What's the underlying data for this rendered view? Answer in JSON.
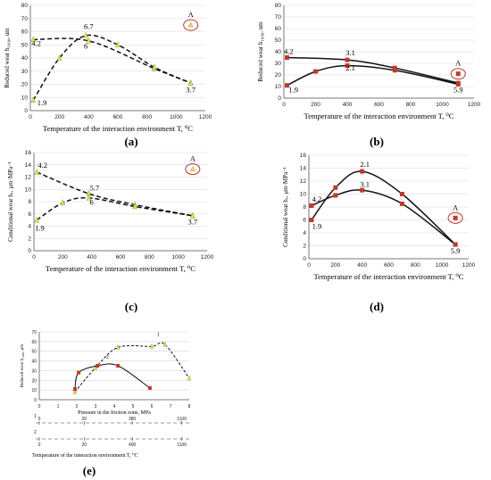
{
  "chart_data": [
    {
      "id": "a",
      "type": "line",
      "panel_label": "(a)",
      "ylabel": "Reduced wear h₁₀₀₀, um",
      "xlabel": "Temperature of the interaction environment T, ⁰C",
      "xlim": [
        0,
        1200
      ],
      "ylim": [
        0,
        80
      ],
      "xticks": [
        0,
        200,
        400,
        600,
        800,
        1000,
        1200
      ],
      "yticks": [
        0,
        10,
        20,
        30,
        40,
        50,
        60,
        70,
        80
      ],
      "series": [
        {
          "style": "dashed",
          "marker": "triangle",
          "color": "#dfe05a",
          "points": [
            [
              20,
              54
            ],
            [
              400,
              53
            ],
            [
              850,
              32
            ],
            [
              1100,
              21
            ]
          ]
        },
        {
          "style": "dashed",
          "marker": "triangle",
          "color": "#dfe05a",
          "points": [
            [
              20,
              8
            ],
            [
              200,
              40
            ],
            [
              380,
              57
            ],
            [
              600,
              50
            ],
            [
              850,
              33
            ],
            [
              1100,
              21
            ]
          ]
        }
      ],
      "outlier": {
        "x": 1100,
        "y": 65,
        "label": "A"
      },
      "annotations": [
        {
          "text": "4.2",
          "x": 40,
          "y": 49
        },
        {
          "text": "6.7",
          "x": 400,
          "y": 62
        },
        {
          "text": "6",
          "x": 380,
          "y": 47
        },
        {
          "text": "1.9",
          "x": 80,
          "y": 4
        },
        {
          "text": "3.7",
          "x": 1100,
          "y": 14
        }
      ]
    },
    {
      "id": "b",
      "type": "line",
      "panel_label": "(b)",
      "ylabel": "Reduced wear h₁₀₀₀, um",
      "xlabel": "Temperature of the interaction environment T, ⁰C",
      "xlim": [
        0,
        1200
      ],
      "ylim": [
        0,
        80
      ],
      "xticks": [
        0,
        200,
        400,
        600,
        800,
        1000,
        1200
      ],
      "yticks": [
        0,
        10,
        20,
        30,
        40,
        50,
        60,
        70,
        80
      ],
      "series": [
        {
          "style": "solid",
          "marker": "square",
          "color": "#c0392b",
          "points": [
            [
              20,
              35
            ],
            [
              400,
              33
            ],
            [
              700,
              26
            ],
            [
              1100,
              13
            ]
          ]
        },
        {
          "style": "solid",
          "marker": "square",
          "color": "#c0392b",
          "points": [
            [
              20,
              11
            ],
            [
              200,
              23
            ],
            [
              400,
              28
            ],
            [
              700,
              24
            ],
            [
              1100,
              12
            ]
          ]
        }
      ],
      "outlier": {
        "x": 1100,
        "y": 21,
        "label": "A"
      },
      "annotations": [
        {
          "text": "4.2",
          "x": 30,
          "y": 38
        },
        {
          "text": "3.1",
          "x": 420,
          "y": 37
        },
        {
          "text": "2.1",
          "x": 420,
          "y": 24
        },
        {
          "text": "1.9",
          "x": 60,
          "y": 5
        },
        {
          "text": "5.9",
          "x": 1100,
          "y": 5
        }
      ]
    },
    {
      "id": "c",
      "type": "line",
      "panel_label": "(c)",
      "ylabel": "Conditional wear hᵥ, μm·MPa⁻¹",
      "xlabel": "Temperature of the interaction environment T, ⁰C",
      "xlim": [
        0,
        1200
      ],
      "ylim": [
        0,
        16
      ],
      "xticks": [
        0,
        200,
        400,
        600,
        800,
        1000,
        1200
      ],
      "yticks": [
        0,
        2,
        4,
        6,
        8,
        10,
        12,
        14,
        16
      ],
      "series": [
        {
          "style": "dashed",
          "marker": "triangle",
          "color": "#dfe05a",
          "points": [
            [
              20,
              12.8
            ],
            [
              380,
              9.3
            ],
            [
              700,
              7.5
            ],
            [
              1100,
              5.7
            ]
          ]
        },
        {
          "style": "dashed",
          "marker": "triangle",
          "color": "#dfe05a",
          "points": [
            [
              20,
              5
            ],
            [
              200,
              7.8
            ],
            [
              380,
              8.6
            ],
            [
              700,
              7.2
            ],
            [
              1100,
              5.7
            ]
          ]
        }
      ],
      "outlier": {
        "x": 1100,
        "y": 13.3,
        "label": "A"
      },
      "annotations": [
        {
          "text": "4.2",
          "x": 60,
          "y": 13.5
        },
        {
          "text": "5.7",
          "x": 420,
          "y": 9.8
        },
        {
          "text": "6",
          "x": 400,
          "y": 7.5
        },
        {
          "text": "1.9",
          "x": 40,
          "y": 3.3
        },
        {
          "text": "3.7",
          "x": 1100,
          "y": 4.3
        }
      ]
    },
    {
      "id": "d",
      "type": "line",
      "panel_label": "(d)",
      "ylabel": "Conditional wear hᵥ, μm·MPa⁻¹",
      "xlabel": "Temperature of the interaction environment T, ⁰C",
      "xlim": [
        0,
        1200
      ],
      "ylim": [
        0,
        16
      ],
      "xticks": [
        0,
        200,
        400,
        600,
        800,
        1000,
        1200
      ],
      "yticks": [
        0,
        2,
        4,
        6,
        8,
        10,
        12,
        14,
        16
      ],
      "series": [
        {
          "style": "solid",
          "marker": "square",
          "color": "#c0392b",
          "points": [
            [
              20,
              6
            ],
            [
              200,
              11
            ],
            [
              400,
              13.5
            ],
            [
              700,
              10
            ],
            [
              1100,
              2.2
            ]
          ]
        },
        {
          "style": "solid",
          "marker": "square",
          "color": "#c0392b",
          "points": [
            [
              20,
              8.2
            ],
            [
              200,
              9.8
            ],
            [
              400,
              10.6
            ],
            [
              700,
              8.5
            ],
            [
              1100,
              2.2
            ]
          ]
        }
      ],
      "outlier": {
        "x": 1100,
        "y": 6.3,
        "label": "A"
      },
      "annotations": [
        {
          "text": "2.1",
          "x": 420,
          "y": 14.2
        },
        {
          "text": "3.1",
          "x": 420,
          "y": 11.1
        },
        {
          "text": "4.2",
          "x": 60,
          "y": 8.8
        },
        {
          "text": "1.9",
          "x": 60,
          "y": 4.6
        },
        {
          "text": "5.9",
          "x": 1100,
          "y": 0.8
        }
      ]
    },
    {
      "id": "e",
      "type": "line",
      "panel_label": "(e)",
      "ylabel": "Reduced wear h₁₀₀₀, μm",
      "xlabel": "Pressure in the friction zone, MPa",
      "xlabel2": "Temperature of the interaction environment T, ⁰C",
      "xlim": [
        0,
        8
      ],
      "ylim": [
        0,
        70
      ],
      "xticks": [
        0,
        1,
        2,
        3,
        4,
        5,
        6,
        7,
        8
      ],
      "yticks": [
        0,
        10,
        20,
        30,
        40,
        50,
        60,
        70
      ],
      "series": [
        {
          "name": "1",
          "style": "dashed",
          "marker": "triangle",
          "color": "#dfe05a",
          "points": [
            [
              1.9,
              8
            ],
            [
              3,
              33
            ],
            [
              4.2,
              54
            ],
            [
              6,
              55
            ],
            [
              6.7,
              57
            ],
            [
              8,
              22
            ]
          ]
        },
        {
          "name": "2",
          "style": "solid",
          "marker": "square",
          "color": "#c0392b",
          "points": [
            [
              1.9,
              11
            ],
            [
              2.1,
              28
            ],
            [
              3.1,
              35
            ],
            [
              4.2,
              35
            ],
            [
              5.9,
              12
            ]
          ]
        }
      ],
      "secondary_axes": [
        {
          "label": "1",
          "ticks": [
            "0",
            "20",
            "380",
            "1100"
          ]
        },
        {
          "label": "2",
          "ticks": [
            "0",
            "20",
            "400",
            "1100"
          ]
        }
      ]
    }
  ]
}
